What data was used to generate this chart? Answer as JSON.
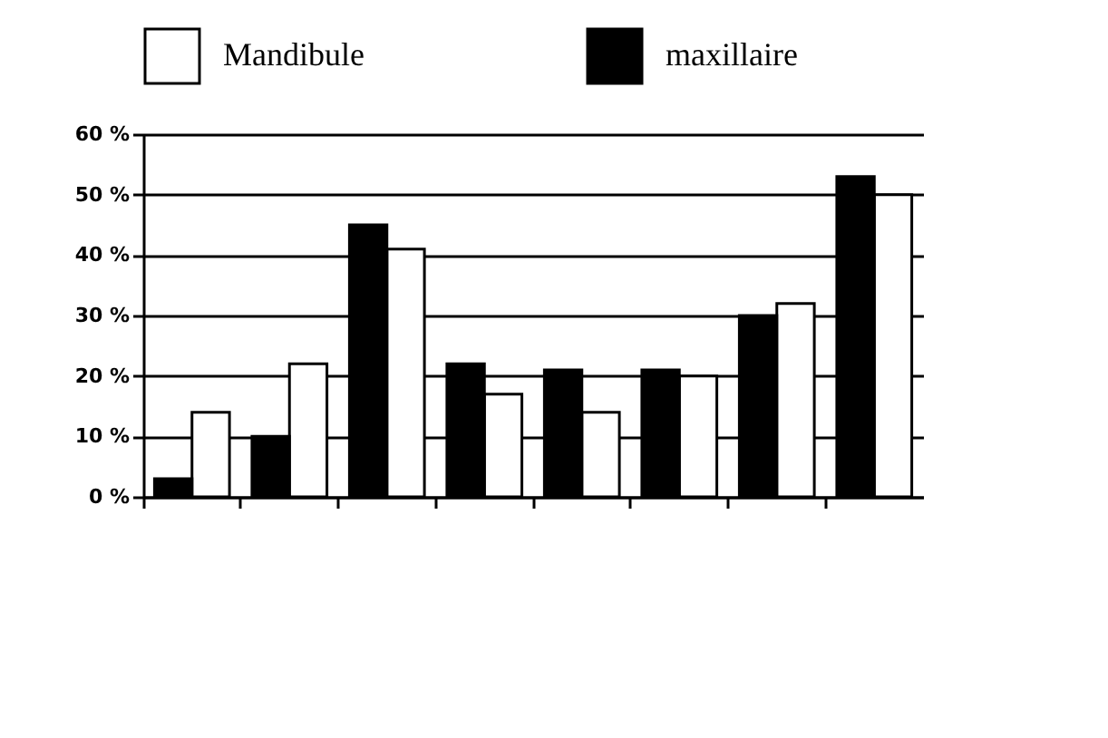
{
  "chart_data": {
    "type": "bar",
    "categories": [
      null,
      null,
      null,
      null,
      null,
      null,
      null,
      null
    ],
    "series": [
      {
        "name": "Mandibule",
        "color": "#ffffff",
        "values": [
          14,
          22,
          41,
          17,
          14,
          20,
          32,
          50
        ]
      },
      {
        "name": "maxillaire",
        "color": "#000000",
        "values": [
          3,
          10,
          45,
          22,
          21,
          21,
          30,
          53
        ]
      }
    ],
    "ylim": [
      0,
      60
    ],
    "yticks": [
      {
        "value": 0,
        "label": "0 %"
      },
      {
        "value": 10,
        "label": "10 %"
      },
      {
        "value": 20,
        "label": "20 %"
      },
      {
        "value": 30,
        "label": "30 %"
      },
      {
        "value": 40,
        "label": "40 %"
      },
      {
        "value": 50,
        "label": "50 %"
      },
      {
        "value": 60,
        "label": "60 %"
      }
    ],
    "grid": "y",
    "legend": "top"
  }
}
